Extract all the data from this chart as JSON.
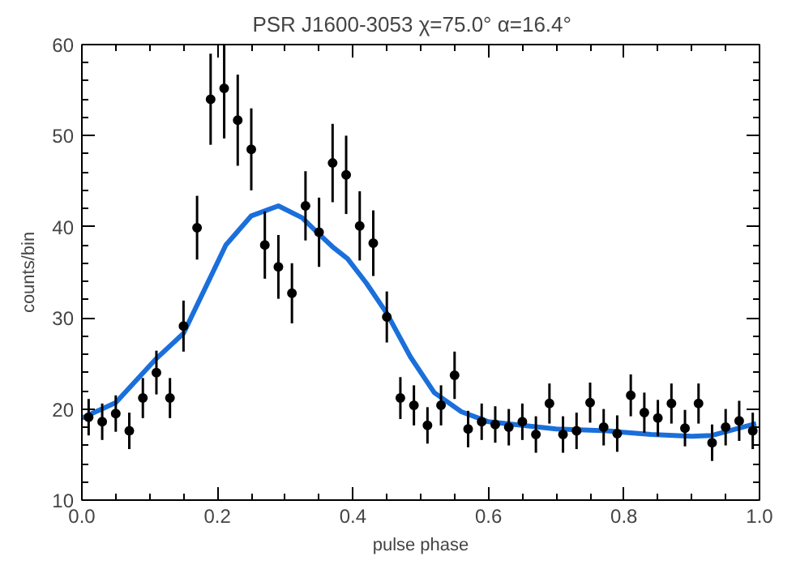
{
  "chart_data": {
    "type": "scatter",
    "title": "PSR J1600-3053   χ=75.0°  α=16.4°",
    "xlabel": "pulse phase",
    "ylabel": "counts/bin",
    "xlim": [
      0,
      1
    ],
    "ylim": [
      10,
      60
    ],
    "xticks": [
      {
        "value": 0,
        "label": "0.0"
      },
      {
        "value": 0.2,
        "label": "0.2"
      },
      {
        "value": 0.4,
        "label": "0.4"
      },
      {
        "value": 0.6,
        "label": "0.6"
      },
      {
        "value": 0.8,
        "label": "0.8"
      },
      {
        "value": 1,
        "label": "1.0"
      }
    ],
    "yticks": [
      10,
      20,
      30,
      40,
      50,
      60
    ],
    "grid": false,
    "series": [
      {
        "color": "#000000",
        "marker": "circle",
        "x": [
          0.01,
          0.03,
          0.05,
          0.07,
          0.09,
          0.11,
          0.13,
          0.15,
          0.17,
          0.19,
          0.21,
          0.23,
          0.25,
          0.27,
          0.29,
          0.31,
          0.33,
          0.35,
          0.37,
          0.39,
          0.41,
          0.43,
          0.45,
          0.47,
          0.49,
          0.51,
          0.53,
          0.55,
          0.57,
          0.59,
          0.61,
          0.63,
          0.65,
          0.67,
          0.69,
          0.71,
          0.73,
          0.75,
          0.77,
          0.79,
          0.81,
          0.83,
          0.85,
          0.87,
          0.89,
          0.91,
          0.93,
          0.95,
          0.97,
          0.99
        ],
        "values": [
          19.1,
          18.6,
          19.5,
          17.6,
          21.2,
          24.0,
          21.2,
          29.1,
          39.9,
          54.0,
          55.2,
          51.7,
          48.5,
          38.0,
          35.6,
          32.7,
          42.3,
          39.4,
          47.0,
          45.7,
          40.1,
          38.2,
          30.1,
          21.2,
          20.4,
          18.2,
          20.4,
          23.7,
          17.8,
          18.6,
          18.3,
          18.0,
          18.6,
          17.2,
          20.6,
          17.2,
          17.6,
          20.7,
          18.0,
          17.3,
          21.5,
          19.6,
          19.0,
          20.6,
          17.9,
          20.6,
          16.3,
          18.0,
          18.7,
          17.6
        ],
        "errors": [
          2,
          2,
          2,
          2,
          2.2,
          2.4,
          2.2,
          2.8,
          3.5,
          5,
          5.5,
          5,
          4.5,
          3.7,
          3.5,
          3.3,
          3.8,
          3.8,
          4.3,
          4.3,
          3.8,
          3.6,
          2.8,
          2.3,
          2.2,
          2,
          2.2,
          2.6,
          2,
          2,
          2,
          2,
          2,
          2,
          2.2,
          2,
          2,
          2.2,
          2,
          2,
          2.3,
          2.2,
          2,
          2.2,
          2,
          2.2,
          2,
          2,
          2.2,
          2
        ]
      },
      {
        "type": "line",
        "color": "#1a6fdb",
        "line_style": "solid",
        "marker": "none",
        "x": [
          0,
          0.05,
          0.108,
          0.15,
          0.2125,
          0.25,
          0.29,
          0.325,
          0.35,
          0.37,
          0.392,
          0.42,
          0.45,
          0.485,
          0.52,
          0.56,
          0.6,
          0.65,
          0.7,
          0.775,
          0.84,
          0.9,
          0.93,
          0.97,
          0.995
        ],
        "values": [
          19,
          20.7,
          25.4,
          28.3,
          38.0,
          41.2,
          42.3,
          41.0,
          39.2,
          37.8,
          36.5,
          33.8,
          30.5,
          25.7,
          21.8,
          19.7,
          18.6,
          18.2,
          17.8,
          17.6,
          17.2,
          17.0,
          17.1,
          17.9,
          18.4
        ]
      }
    ]
  }
}
